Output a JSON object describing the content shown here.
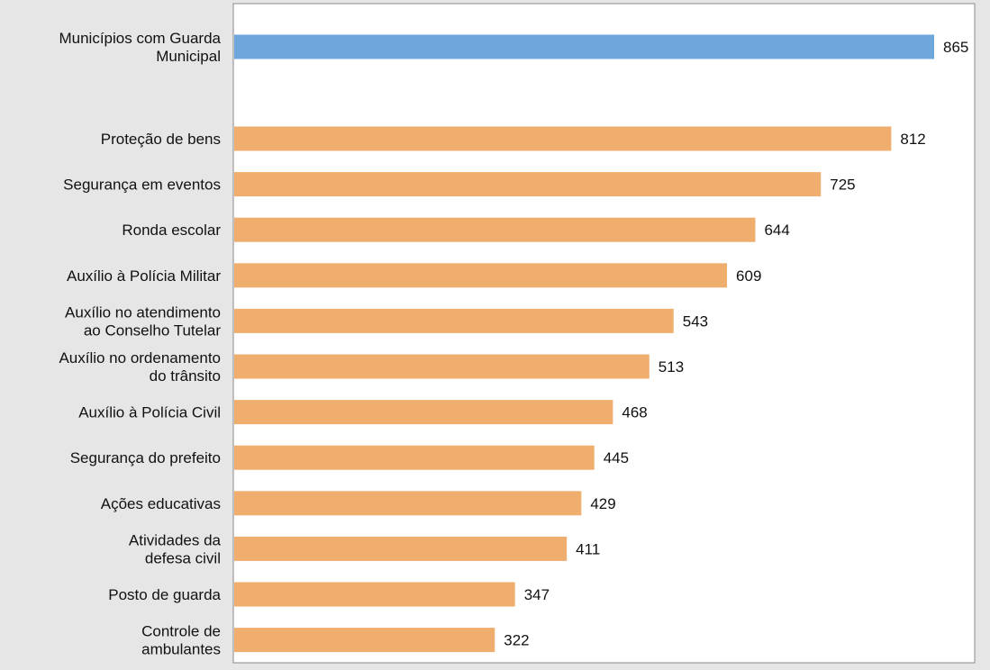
{
  "colors": {
    "background": "#e6e6e6",
    "plot_background": "#ffffff",
    "plot_border": "#8a8a8a",
    "highlight_bar": "#6fa6dc",
    "bar": "#efae6e",
    "text": "#111111"
  },
  "chart_data": {
    "type": "bar",
    "orientation": "horizontal",
    "title": "",
    "xlabel": "",
    "ylabel": "",
    "xlim": [
      0,
      900
    ],
    "grid": false,
    "legend": "none",
    "highlight": {
      "label": [
        "Municípios com Guarda",
        "Municipal"
      ],
      "value": 865
    },
    "categories": [
      [
        "Proteção de bens"
      ],
      [
        "Segurança em eventos"
      ],
      [
        "Ronda escolar"
      ],
      [
        "Auxílio à Polícia Militar"
      ],
      [
        "Auxílio no atendimento",
        "ao Conselho Tutelar"
      ],
      [
        "Auxílio no ordenamento",
        "do trânsito"
      ],
      [
        "Auxílio à Polícia Civil"
      ],
      [
        "Segurança do prefeito"
      ],
      [
        "Ações educativas"
      ],
      [
        "Atividades da",
        "defesa civil"
      ],
      [
        "Posto de guarda"
      ],
      [
        "Controle de",
        "ambulantes"
      ]
    ],
    "values": [
      812,
      725,
      644,
      609,
      543,
      513,
      468,
      445,
      429,
      411,
      347,
      322
    ]
  }
}
